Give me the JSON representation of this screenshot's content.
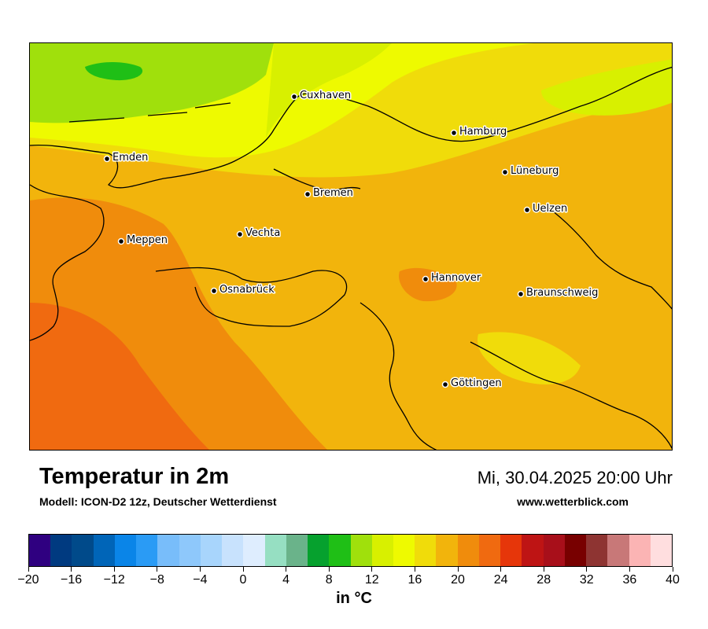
{
  "header": {
    "title": "Temperatur in 2m",
    "subtitle": "Modell: ICON-D2 12z, Deutscher Wetterdienst",
    "datetime": "Mi, 30.04.2025 20:00 Uhr",
    "website": "www.wetterblick.com"
  },
  "cities": [
    {
      "name": "Cuxhaven"
    },
    {
      "name": "Hamburg"
    },
    {
      "name": "Emden"
    },
    {
      "name": "Lüneburg"
    },
    {
      "name": "Bremen"
    },
    {
      "name": "Uelzen"
    },
    {
      "name": "Vechta"
    },
    {
      "name": "Meppen"
    },
    {
      "name": "Hannover"
    },
    {
      "name": "Osnabrück"
    },
    {
      "name": "Braunschweig"
    },
    {
      "name": "Göttingen"
    }
  ],
  "legend": {
    "unit": "in °C",
    "min": -20,
    "max": 40,
    "step": 2,
    "tick_labels": [
      "−20",
      "−16",
      "−12",
      "−8",
      "−4",
      "0",
      "4",
      "8",
      "12",
      "16",
      "20",
      "24",
      "28",
      "32",
      "36",
      "40"
    ],
    "colors": [
      "#2f0080",
      "#003a80",
      "#004a8a",
      "#0065b8",
      "#0a85e8",
      "#2a9bf5",
      "#78bdfa",
      "#8ec8fb",
      "#a8d5fc",
      "#c8e2fd",
      "#deedfe",
      "#96dfc2",
      "#6ab38a",
      "#06a12e",
      "#1fbf16",
      "#a0e00c",
      "#d8f000",
      "#eefa00",
      "#f0dc0a",
      "#f2b40c",
      "#f08c0c",
      "#f06a10",
      "#e6360a",
      "#be1414",
      "#a80f1a",
      "#780000",
      "#8e3432",
      "#c87878",
      "#fbb4b4",
      "#ffdedf"
    ]
  },
  "colors": {
    "very_warm": "#f06a10",
    "warm": "#f08c0c",
    "mild": "#f2b40c",
    "cool": "#f0dc0a",
    "cooler": "#eefa00",
    "coast": "#d8f000",
    "sea": "#a0e00c",
    "sea_cold": "#1fbf16"
  }
}
